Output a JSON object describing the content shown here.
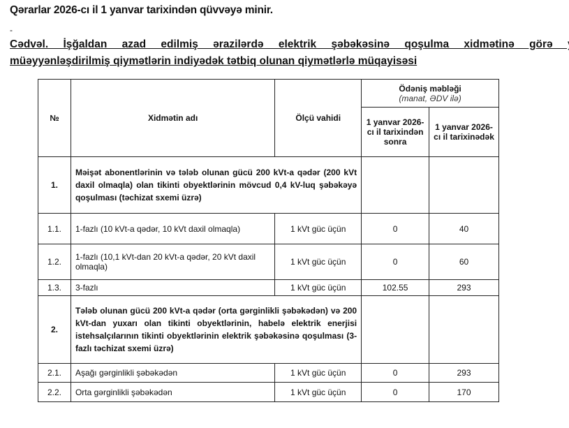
{
  "heading": "Qərarlar 2026-cı il 1 yanvar tarixindən qüvvəyə minir.",
  "dash": "-",
  "caption_line1": "Cədvəl. İşğaldan azad edilmiş ərazilərdə elektrik şəbəkəsinə qoşulma xidmətinə görə yeni",
  "caption_line2": "müəyyənləşdirilmiş qiymətlərin indiyədək tətbiq olunan qiymətlərlə müqayisəsi",
  "table": {
    "headers": {
      "no": "№",
      "name": "Xidmətin adı",
      "unit": "Ölçü vahidi",
      "payment": "Ödəniş məbləği",
      "payment_note": "(manat, ƏDV ilə)",
      "after": "1 yanvar 2026-cı il tarixindən sonra",
      "before": "1 yanvar 2026-cı il tarixinədək"
    },
    "rows": [
      {
        "no": "1.",
        "name": "Məişət abonentlərinin və tələb olunan gücü 200 kVt-a qədər (200 kVt daxil olmaqla) olan tikinti obyektlərinin mövcud 0,4 kV-luq şəbəkəyə qoşulması (təchizat sxemi üzrə)"
      },
      {
        "no": "1.1.",
        "name": "1-fazlı (10 kVt-a qədər, 10 kVt daxil olmaqla)",
        "unit": "1 kVt güc üçün",
        "after": "0",
        "before": "40"
      },
      {
        "no": "1.2.",
        "name": "1-fazlı (10,1 kVt-dan 20 kVt-a qədər, 20 kVt daxil olmaqla)",
        "unit": "1 kVt güc üçün",
        "after": "0",
        "before": "60"
      },
      {
        "no": "1.3.",
        "name": "3-fazlı",
        "unit": "1 kVt güc üçün",
        "after": "102.55",
        "before": "293"
      },
      {
        "no": "2.",
        "name": "Tələb olunan gücü 200 kVt-a qədər (orta gərginlikli şəbəkədən) və 200 kVt-dan yuxarı olan tikinti obyektlərinin, habelə elektrik enerjisi istehsalçılarının tikinti obyektlərinin elektrik şəbəkəsinə qoşulması (3-fazlı təchizat sxemi üzrə)"
      },
      {
        "no": "2.1.",
        "name": "Aşağı gərginlikli şəbəkədən",
        "unit": "1 kVt güc üçün",
        "after": "0",
        "before": "293"
      },
      {
        "no": "2.2.",
        "name": "Orta gərginlikli şəbəkədən",
        "unit": "1 kVt güc üçün",
        "after": "0",
        "before": "170"
      }
    ]
  }
}
